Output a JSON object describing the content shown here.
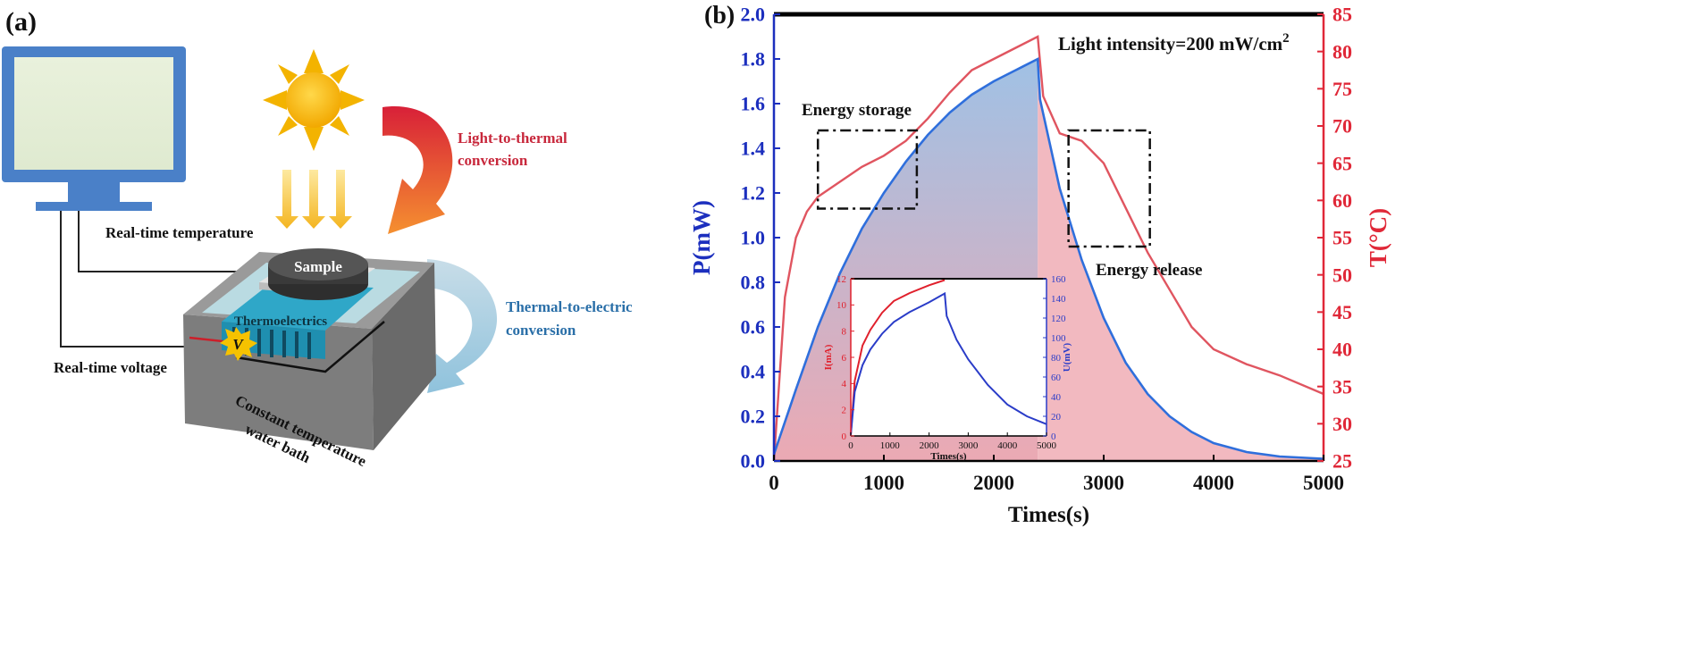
{
  "panel_a": {
    "label": "(a)",
    "light_to_thermal": [
      "Light-to-thermal",
      "conversion"
    ],
    "thermal_to_electric": [
      "Thermal-to-electric",
      "conversion"
    ],
    "real_time_temperature": "Real-time  temperature",
    "real_time_voltage": "Real-time voltage",
    "sample": "Sample",
    "thermoelectrics": "Thermoelectrics",
    "voltmeter": "V",
    "water_bath": [
      "Constant temperature",
      "water bath"
    ],
    "colors": {
      "thermal_text": "#c8283c",
      "electric_text": "#2a6fa8",
      "sun": "#f5b400"
    }
  },
  "panel_b": {
    "label": "(b)",
    "light_intensity": "Light intensity=200 mW/cm",
    "light_intensity_sup": "2",
    "energy_storage": "Energy storage",
    "energy_release": "Energy release"
  },
  "chart_data": [
    {
      "type": "line",
      "title": "",
      "xlabel": "Times(s)",
      "ylabel": "P(mW)",
      "y2label": "T(°C)",
      "xlim": [
        0,
        5000
      ],
      "ylim": [
        0,
        2.0
      ],
      "y2lim": [
        25,
        85
      ],
      "xticks": [
        0,
        1000,
        2000,
        3000,
        4000,
        5000
      ],
      "yticks": [
        0.0,
        0.2,
        0.4,
        0.6,
        0.8,
        1.0,
        1.2,
        1.4,
        1.6,
        1.8,
        2.0
      ],
      "y2ticks": [
        25,
        30,
        35,
        40,
        45,
        50,
        55,
        60,
        65,
        70,
        75,
        80,
        85
      ],
      "series": [
        {
          "name": "P(mW)",
          "axis": "left",
          "color": "#2f6fdc",
          "x": [
            0,
            200,
            400,
            600,
            800,
            1000,
            1200,
            1400,
            1600,
            1800,
            2000,
            2200,
            2400,
            2420,
            2600,
            2800,
            3000,
            3200,
            3400,
            3600,
            3800,
            4000,
            4300,
            4600,
            5000
          ],
          "values": [
            0.03,
            0.32,
            0.6,
            0.84,
            1.04,
            1.2,
            1.34,
            1.46,
            1.56,
            1.64,
            1.7,
            1.75,
            1.8,
            1.62,
            1.22,
            0.9,
            0.64,
            0.44,
            0.3,
            0.2,
            0.13,
            0.08,
            0.04,
            0.02,
            0.01
          ]
        },
        {
          "name": "T(°C)",
          "axis": "right",
          "color": "#e05560",
          "x": [
            0,
            100,
            200,
            300,
            400,
            600,
            800,
            1000,
            1200,
            1400,
            1600,
            1800,
            2000,
            2200,
            2400,
            2450,
            2600,
            2800,
            3000,
            3200,
            3400,
            3600,
            3800,
            4000,
            4300,
            4600,
            5000
          ],
          "values": [
            25,
            47,
            55,
            58.5,
            60.5,
            62.5,
            64.5,
            66,
            68,
            71,
            74.5,
            77.5,
            79,
            80.5,
            82,
            74,
            69,
            68,
            65,
            59,
            53,
            48,
            43,
            40,
            38,
            36.5,
            34
          ]
        }
      ]
    },
    {
      "type": "line",
      "title": "",
      "xlabel": "Times(s)",
      "ylabel": "I(mA)",
      "y2label": "U(mV)",
      "xlim": [
        0,
        5000
      ],
      "ylim": [
        0,
        12
      ],
      "y2lim": [
        0,
        160
      ],
      "xticks": [
        0,
        1000,
        2000,
        3000,
        4000,
        5000
      ],
      "yticks": [
        0,
        2,
        4,
        6,
        8,
        10,
        12
      ],
      "y2ticks": [
        0,
        20,
        40,
        60,
        80,
        100,
        120,
        140,
        160
      ],
      "series": [
        {
          "name": "I(mA)",
          "axis": "left",
          "color": "#e0202c",
          "x": [
            0,
            100,
            300,
            500,
            800,
            1100,
            1500,
            2000,
            2400
          ],
          "values": [
            0.1,
            4.2,
            6.9,
            8.1,
            9.4,
            10.3,
            10.9,
            11.5,
            11.9
          ]
        },
        {
          "name": "U(mV)",
          "axis": "right",
          "color": "#2a3cc8",
          "x": [
            0,
            100,
            300,
            500,
            800,
            1100,
            1500,
            2000,
            2400,
            2450,
            2700,
            3000,
            3500,
            4000,
            4500,
            5000
          ],
          "values": [
            1,
            45,
            72,
            88,
            104,
            116,
            126,
            136,
            145,
            122,
            98,
            78,
            52,
            32,
            20,
            12
          ]
        }
      ]
    }
  ]
}
